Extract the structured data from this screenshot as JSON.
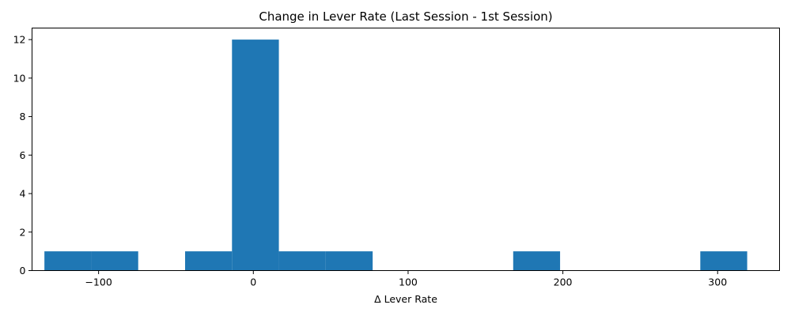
{
  "chart_data": {
    "type": "bar",
    "title": "Change in Lever Rate (Last Session - 1st Session)",
    "xlabel": "Δ Lever Rate",
    "ylabel": "",
    "xlim": [
      -143,
      340
    ],
    "ylim": [
      0,
      12.6
    ],
    "xticks": [
      -100,
      0,
      100,
      200,
      300
    ],
    "xtick_labels": [
      "−100",
      "0",
      "100",
      "200",
      "300"
    ],
    "yticks": [
      0,
      2,
      4,
      6,
      8,
      10,
      12
    ],
    "ytick_labels": [
      "0",
      "2",
      "4",
      "6",
      "8",
      "10",
      "12"
    ],
    "grid": false,
    "legend": "none",
    "color": "#1f77b4",
    "bins": [
      {
        "start": -135,
        "end": -104.7,
        "count": 1
      },
      {
        "start": -104.7,
        "end": -74.4,
        "count": 1
      },
      {
        "start": -44.1,
        "end": -13.8,
        "count": 1
      },
      {
        "start": -13.8,
        "end": 16.5,
        "count": 12
      },
      {
        "start": 16.5,
        "end": 46.8,
        "count": 1
      },
      {
        "start": 46.8,
        "end": 77.1,
        "count": 1
      },
      {
        "start": 167.9,
        "end": 198.2,
        "count": 1
      },
      {
        "start": 288.8,
        "end": 319.1,
        "count": 1
      }
    ]
  }
}
